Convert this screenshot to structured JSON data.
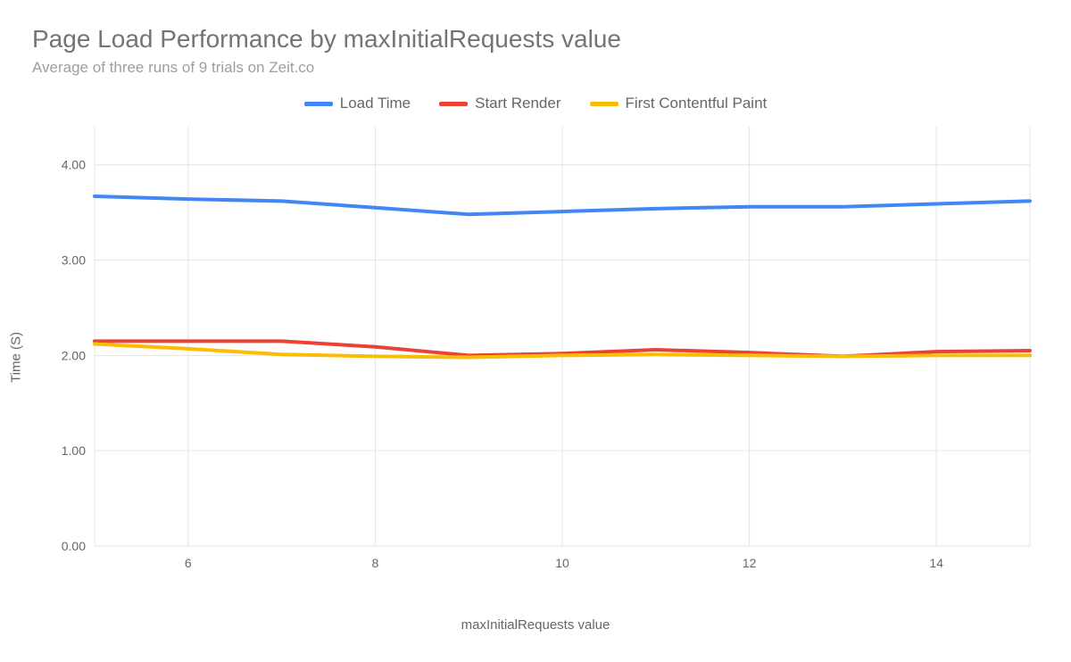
{
  "title": "Page Load Performance by maxInitialRequests value",
  "subtitle": "Average of three runs of 9 trials on Zeit.co",
  "legend": [
    {
      "label": "Load Time",
      "color": "#4285f4"
    },
    {
      "label": "Start Render",
      "color": "#ea4335"
    },
    {
      "label": "First Contentful Paint",
      "color": "#fbbc04"
    }
  ],
  "chart": {
    "type": "line",
    "x_label": "maxInitialRequests value",
    "y_label": "Time (S)",
    "x_values": [
      5,
      6,
      7,
      8,
      9,
      10,
      11,
      12,
      13,
      14,
      15
    ],
    "x_ticks": [
      6,
      8,
      10,
      12,
      14
    ],
    "y_ticks": [
      0.0,
      1.0,
      2.0,
      3.0,
      4.0
    ],
    "y_tick_labels": [
      "0.00",
      "1.00",
      "2.00",
      "3.00",
      "4.00"
    ],
    "xlim": [
      5,
      15
    ],
    "ylim": [
      0,
      4.4
    ],
    "series": [
      {
        "name": "Load Time",
        "color": "#4285f4",
        "y": [
          3.67,
          3.64,
          3.62,
          3.55,
          3.48,
          3.51,
          3.54,
          3.56,
          3.56,
          3.59,
          3.62
        ]
      },
      {
        "name": "Start Render",
        "color": "#ea4335",
        "y": [
          2.15,
          2.15,
          2.15,
          2.09,
          2.0,
          2.02,
          2.06,
          2.03,
          1.99,
          2.04,
          2.05
        ]
      },
      {
        "name": "First Contentful Paint",
        "color": "#fbbc04",
        "y": [
          2.12,
          2.07,
          2.01,
          1.99,
          1.98,
          2.0,
          2.01,
          2.0,
          1.99,
          2.0,
          2.0
        ]
      }
    ],
    "line_width": 4,
    "background_color": "#ffffff",
    "grid_color": "#e3e3e3",
    "tick_font_size": 14,
    "axis_title_font_size": 15,
    "title_font_size": 28,
    "title_color": "#747474",
    "subtitle_font_size": 17,
    "subtitle_color": "#9e9e9e",
    "legend_font_size": 17,
    "legend_color": "#666666"
  }
}
